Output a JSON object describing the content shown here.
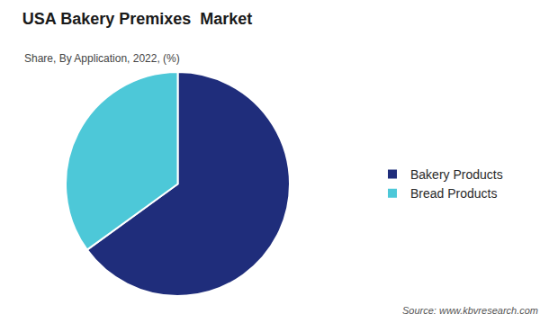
{
  "chart_data": {
    "type": "pie",
    "title": "USA Bakery Premixes  Market",
    "subtitle": "Share, By Application, 2022, (%)",
    "source": "Source: www.kbvresearch.com",
    "categories": [
      "Bakery Products",
      "Bread Products"
    ],
    "values": [
      65,
      35
    ],
    "colors": [
      "#1f2d7b",
      "#4dc8d8"
    ],
    "legend": "right",
    "data_labels": false
  }
}
